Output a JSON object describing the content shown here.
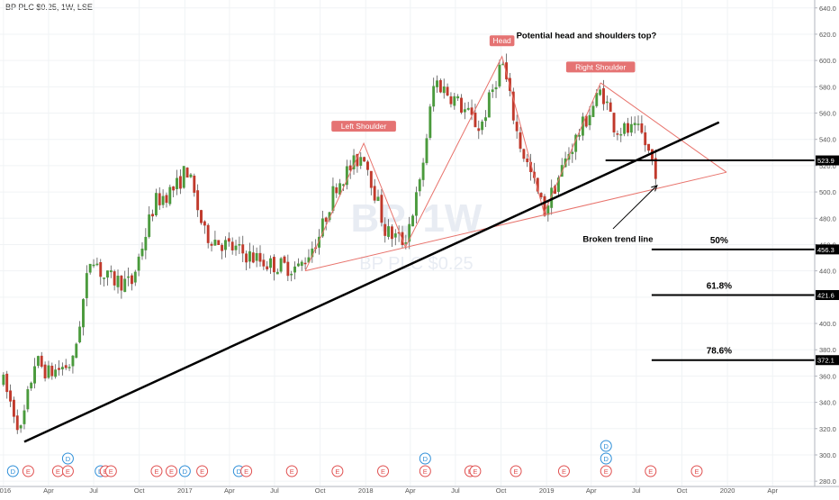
{
  "header": {
    "title": "BP PLC $0.25, 1W, LSE"
  },
  "watermark": {
    "symbol": "BP, 1W",
    "name": "BP PLC $0.25"
  },
  "colors": {
    "up": "#4a9a3c",
    "down": "#c0392b",
    "pattern": "#e8736c",
    "trend": "#000000",
    "label_bg": "#e57373",
    "grid": "#f0f3f5",
    "event_blue": "#2f8fd8",
    "event_red": "#e05050"
  },
  "chart_data": {
    "type": "candlestick",
    "ylim": [
      276,
      646
    ],
    "y_ticks": [
      280,
      300,
      320,
      340,
      360,
      380,
      400,
      420,
      440,
      460,
      480,
      500,
      520,
      540,
      560,
      580,
      600,
      620,
      640
    ],
    "y_tick_labels": [
      "280.0",
      "300.0",
      "320.0",
      "340.0",
      "360.0",
      "380.0",
      "400.0",
      "420.0",
      "440.0",
      "460.0",
      "480.0",
      "500.0",
      "520.0",
      "540.0",
      "560.0",
      "580.0",
      "600.0",
      "620.0",
      "640.0"
    ],
    "x_ticks": [
      "2016-01-01",
      "2016-04-01",
      "2016-07-01",
      "2016-10-01",
      "2017-01-01",
      "2017-04-01",
      "2017-07-01",
      "2017-10-01",
      "2018-01-01",
      "2018-04-01",
      "2018-07-01",
      "2018-10-01",
      "2019-01-01",
      "2019-04-01",
      "2019-07-01",
      "2019-10-01",
      "2020-01-01",
      "2020-04-01"
    ],
    "x_tick_labels": [
      "2016",
      "Apr",
      "Jul",
      "Oct",
      "2017",
      "Apr",
      "Jul",
      "Oct",
      "2018",
      "Apr",
      "Jul",
      "Oct",
      "2019",
      "Apr",
      "Jul",
      "Oct",
      "2020",
      "Apr"
    ],
    "x_range": [
      "2015-12-25",
      "2020-06-25"
    ],
    "price_waypoints": [
      {
        "date": "2016-01-01",
        "price": 355
      },
      {
        "date": "2016-02-05",
        "price": 318
      },
      {
        "date": "2016-03-05",
        "price": 372
      },
      {
        "date": "2016-04-01",
        "price": 362
      },
      {
        "date": "2016-05-20",
        "price": 370
      },
      {
        "date": "2016-06-27",
        "price": 455
      },
      {
        "date": "2016-07-20",
        "price": 435
      },
      {
        "date": "2016-09-15",
        "price": 430
      },
      {
        "date": "2016-11-01",
        "price": 492
      },
      {
        "date": "2016-12-15",
        "price": 504
      },
      {
        "date": "2017-01-05",
        "price": 518
      },
      {
        "date": "2017-02-10",
        "price": 468
      },
      {
        "date": "2017-04-01",
        "price": 458
      },
      {
        "date": "2017-06-20",
        "price": 445
      },
      {
        "date": "2017-08-20",
        "price": 442
      },
      {
        "date": "2017-10-01",
        "price": 468
      },
      {
        "date": "2017-11-01",
        "price": 505
      },
      {
        "date": "2017-12-28",
        "price": 530
      },
      {
        "date": "2018-02-10",
        "price": 470
      },
      {
        "date": "2018-03-20",
        "price": 462
      },
      {
        "date": "2018-04-20",
        "price": 505
      },
      {
        "date": "2018-05-20",
        "price": 585
      },
      {
        "date": "2018-07-01",
        "price": 570
      },
      {
        "date": "2018-08-20",
        "price": 548
      },
      {
        "date": "2018-10-03",
        "price": 600
      },
      {
        "date": "2018-11-05",
        "price": 540
      },
      {
        "date": "2018-12-27",
        "price": 485
      },
      {
        "date": "2019-02-15",
        "price": 530
      },
      {
        "date": "2019-04-22",
        "price": 578
      },
      {
        "date": "2019-05-20",
        "price": 548
      },
      {
        "date": "2019-07-10",
        "price": 545
      },
      {
        "date": "2019-08-10",
        "price": 516
      }
    ],
    "current_price_label": "523.9",
    "lines": [
      {
        "name": "trend",
        "from": [
          "2016-02-12",
          310
        ],
        "to": [
          "2019-12-15",
          553
        ]
      },
      {
        "name": "neckline",
        "from": [
          "2017-09-01",
          440
        ],
        "to": [
          "2019-12-30",
          515
        ]
      },
      {
        "name": "right-shoulder-top",
        "from": [
          "2019-04-20",
          583
        ],
        "to": [
          "2019-12-30",
          515
        ]
      },
      {
        "name": "support",
        "from": [
          "2019-04-30",
          524
        ],
        "to": [
          "2020-05-30",
          524
        ]
      }
    ],
    "pattern_path": [
      [
        "2017-09-01",
        440
      ],
      [
        "2017-12-28",
        537
      ],
      [
        "2018-03-22",
        458
      ],
      [
        "2018-10-03",
        603
      ],
      [
        "2018-12-27",
        484
      ],
      [
        "2019-04-20",
        583
      ]
    ],
    "fib_levels": [
      {
        "pct": "50%",
        "price": 456.3,
        "label": "456.3"
      },
      {
        "pct": "61.8%",
        "price": 421.6,
        "label": "421.6"
      },
      {
        "pct": "78.6%",
        "price": 372.1,
        "label": "372.1"
      }
    ],
    "fib_x_from": "2019-08-01",
    "pattern_labels": [
      {
        "text": "Left Shoulder",
        "date": "2017-12-28",
        "price": 550
      },
      {
        "text": "Head",
        "date": "2018-10-03",
        "price": 615
      },
      {
        "text": "Right Shoulder",
        "date": "2019-04-20",
        "price": 595
      }
    ],
    "annotations": {
      "question": {
        "text": "Potential head and shoulders top?",
        "date": "2018-11-01",
        "price": 617
      },
      "broken": {
        "text": "Broken trend line",
        "date": "2019-03-15",
        "price": 462
      }
    },
    "arrow": {
      "from": [
        "2019-05-15",
        472
      ],
      "to": [
        "2019-08-12",
        505
      ]
    },
    "events": [
      {
        "date": "2016-01-20",
        "type": "D",
        "row": 0
      },
      {
        "date": "2016-02-20",
        "type": "E",
        "row": 0
      },
      {
        "date": "2016-04-20",
        "type": "E",
        "row": 0
      },
      {
        "date": "2016-05-10",
        "type": "D",
        "row": 1
      },
      {
        "date": "2016-05-10",
        "type": "E",
        "row": 0
      },
      {
        "date": "2016-07-15",
        "type": "D",
        "row": 0
      },
      {
        "date": "2016-07-25",
        "type": "E",
        "row": 0
      },
      {
        "date": "2016-08-05",
        "type": "E",
        "row": 0
      },
      {
        "date": "2016-11-05",
        "type": "E",
        "row": 0
      },
      {
        "date": "2016-12-05",
        "type": "E",
        "row": 0
      },
      {
        "date": "2017-01-01",
        "type": "D",
        "row": 0
      },
      {
        "date": "2017-02-05",
        "type": "E",
        "row": 0
      },
      {
        "date": "2017-04-20",
        "type": "D",
        "row": 0
      },
      {
        "date": "2017-05-05",
        "type": "E",
        "row": 0
      },
      {
        "date": "2017-08-05",
        "type": "E",
        "row": 0
      },
      {
        "date": "2017-11-05",
        "type": "E",
        "row": 0
      },
      {
        "date": "2018-02-05",
        "type": "E",
        "row": 0
      },
      {
        "date": "2018-05-01",
        "type": "E",
        "row": 0
      },
      {
        "date": "2018-05-01",
        "type": "D",
        "row": 1
      },
      {
        "date": "2018-07-31",
        "type": "E",
        "row": 0
      },
      {
        "date": "2018-08-10",
        "type": "E",
        "row": 0
      },
      {
        "date": "2018-10-31",
        "type": "E",
        "row": 0
      },
      {
        "date": "2019-02-05",
        "type": "E",
        "row": 0
      },
      {
        "date": "2019-05-01",
        "type": "E",
        "row": 0
      },
      {
        "date": "2019-05-01",
        "type": "D",
        "row": 1
      },
      {
        "date": "2019-05-01",
        "type": "D",
        "row": 2
      },
      {
        "date": "2019-07-30",
        "type": "E",
        "row": 0
      },
      {
        "date": "2019-10-31",
        "type": "E",
        "row": 0
      }
    ]
  }
}
